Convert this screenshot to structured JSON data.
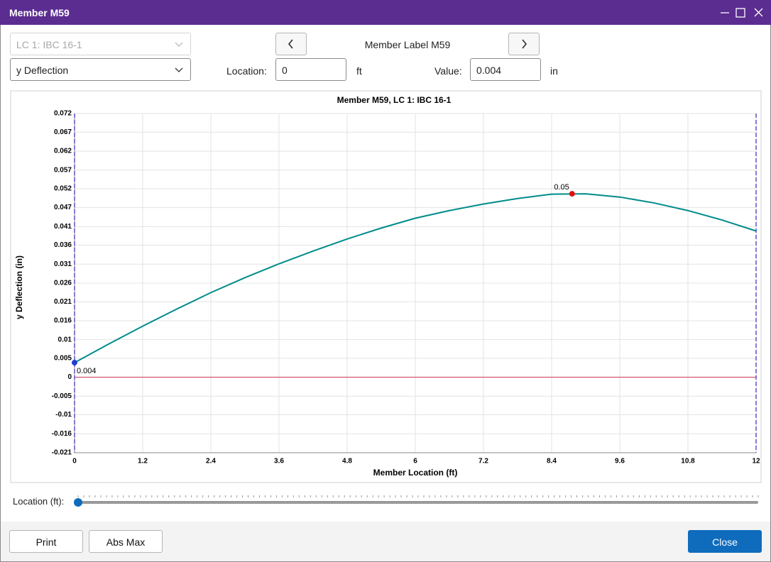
{
  "window": {
    "title": "Member M59"
  },
  "controls": {
    "load_case": "LC 1: IBC 16-1",
    "result_type": "y Deflection",
    "member_label": "Member Label M59",
    "location_label": "Location:",
    "location_value": "0",
    "location_unit": "ft",
    "value_label": "Value:",
    "value_value": "0.004",
    "value_unit": "in",
    "slider_label": "Location (ft):"
  },
  "buttons": {
    "print": "Print",
    "abs_max": "Abs Max",
    "close": "Close"
  },
  "chart_data": {
    "type": "line",
    "title": "Member M59, LC 1: IBC 16-1",
    "x_label": "Member Location (ft)",
    "y_label": "y Deflection (in)",
    "xlim": [
      0,
      12
    ],
    "xticks": [
      0,
      1.2,
      2.4,
      3.6,
      4.8,
      6,
      7.2,
      8.4,
      9.6,
      10.8,
      12
    ],
    "ylim": [
      -0.0207,
      0.0723
    ],
    "yticks": [
      {
        "value": -0.0207,
        "label": "-0.021"
      },
      {
        "value": -0.0155,
        "label": "-0.016"
      },
      {
        "value": -0.0103,
        "label": "-0.01"
      },
      {
        "value": -0.0052,
        "label": "-0.005"
      },
      0,
      {
        "value": 0.0052,
        "label": "0.005"
      },
      {
        "value": 0.0103,
        "label": "0.01"
      },
      {
        "value": 0.0155,
        "label": "0.016"
      },
      {
        "value": 0.0207,
        "label": "0.021"
      },
      {
        "value": 0.0258,
        "label": "0.026"
      },
      {
        "value": 0.031,
        "label": "0.031"
      },
      {
        "value": 0.0362,
        "label": "0.036"
      },
      {
        "value": 0.0413,
        "label": "0.041"
      },
      {
        "value": 0.0465,
        "label": "0.047"
      },
      {
        "value": 0.0517,
        "label": "0.052"
      },
      {
        "value": 0.0568,
        "label": "0.057"
      },
      {
        "value": 0.062,
        "label": "0.062"
      },
      {
        "value": 0.0672,
        "label": "0.067"
      },
      {
        "value": 0.0723,
        "label": "0.072"
      }
    ],
    "grid": true,
    "series": [
      {
        "color": "#008b8b",
        "x": [
          0,
          0.6,
          1.2,
          1.8,
          2.4,
          3.0,
          3.6,
          4.2,
          4.8,
          5.4,
          6.0,
          6.6,
          7.2,
          7.8,
          8.4,
          9.0,
          9.6,
          10.2,
          10.8,
          11.4,
          12
        ],
        "values": [
          0.004,
          0.0091,
          0.014,
          0.0187,
          0.0232,
          0.0273,
          0.0311,
          0.0346,
          0.0379,
          0.0409,
          0.0436,
          0.0457,
          0.0475,
          0.049,
          0.0502,
          0.0503,
          0.0494,
          0.0478,
          0.0457,
          0.0431,
          0.0401
        ]
      }
    ],
    "markers": [
      {
        "x": 0,
        "y": 0.004,
        "label": "0.004",
        "color": "#1f3fcf"
      },
      {
        "x": 8.76,
        "y": 0.0503,
        "label": "0.05",
        "color": "#e01010"
      }
    ]
  }
}
